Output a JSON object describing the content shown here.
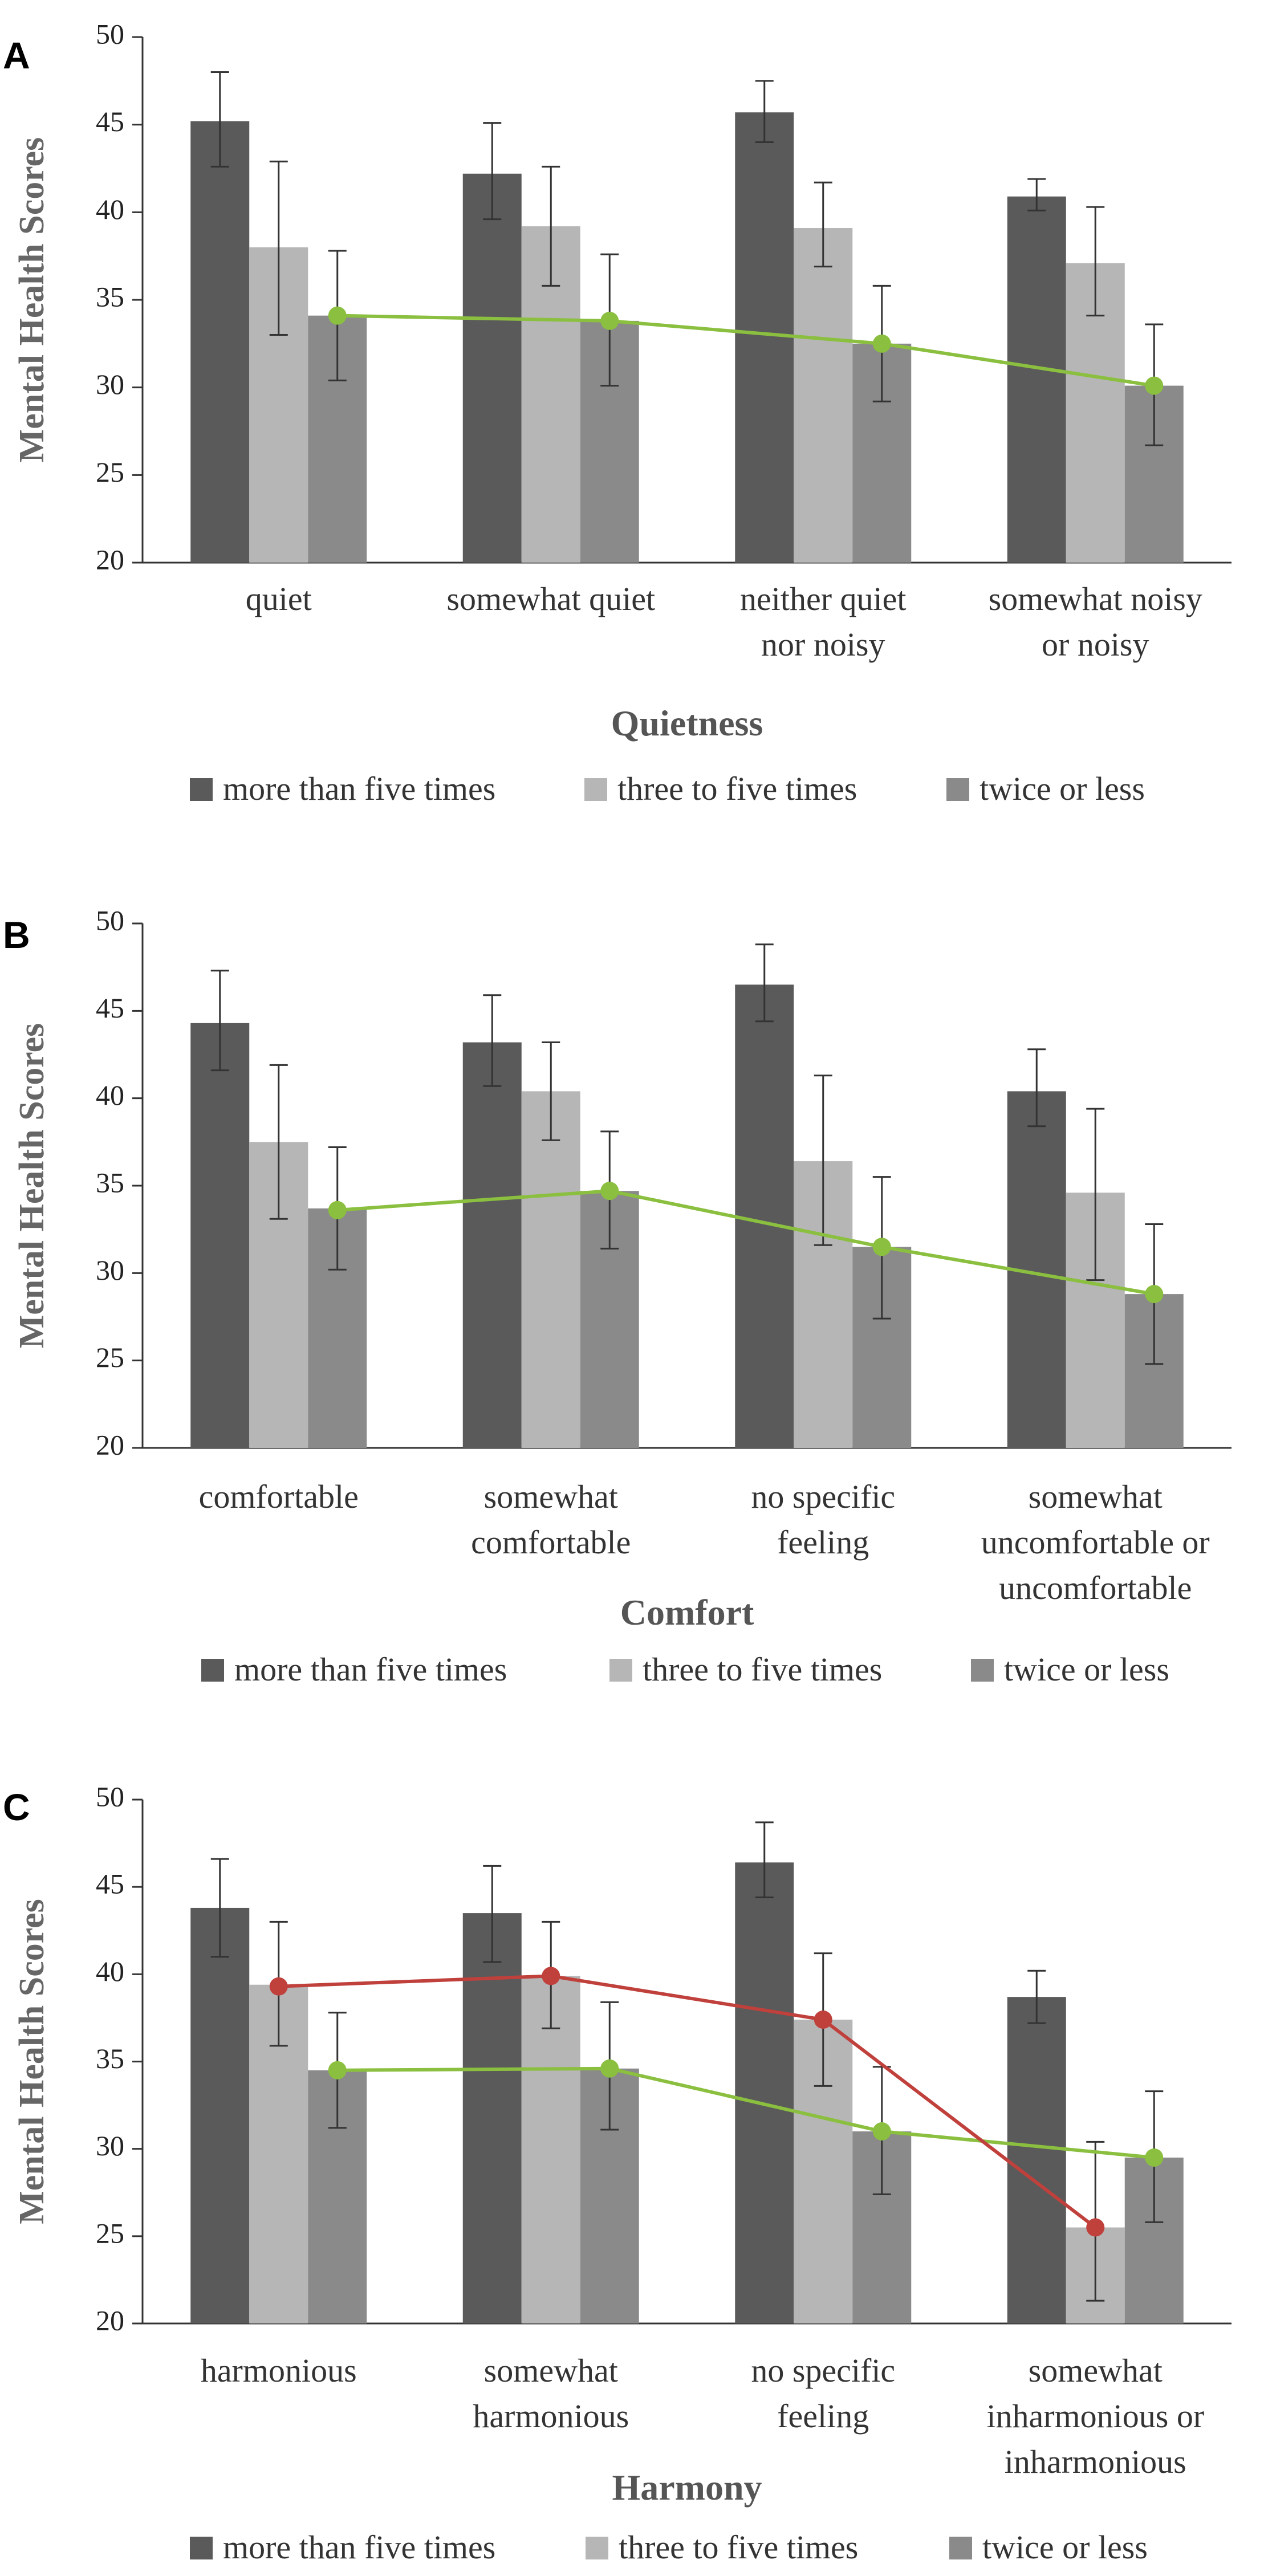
{
  "colors": {
    "more_than_five": "#5a5a5a",
    "three_to_five": "#b6b6b6",
    "twice_or_less": "#8a8a8a",
    "green_line": "#8bbf3f",
    "red_line": "#c0403c",
    "error_bar": "#333333",
    "axis": "#333333"
  },
  "chart_data": [
    {
      "type": "bar",
      "panel": "A",
      "title": "",
      "xlabel": "Quietness",
      "ylabel": "Mental Health Scores",
      "ylim": [
        20,
        50
      ],
      "yticks": [
        20,
        25,
        30,
        35,
        40,
        45,
        50
      ],
      "categories": [
        [
          "quiet"
        ],
        [
          "somewhat quiet"
        ],
        [
          "neither quiet",
          "nor noisy"
        ],
        [
          "somewhat noisy",
          "or noisy"
        ]
      ],
      "series": [
        {
          "name": "more than five times",
          "values": [
            45.2,
            42.2,
            45.7,
            40.9
          ],
          "err_low": [
            42.6,
            39.6,
            44.0,
            40.1
          ],
          "err_high": [
            48.0,
            45.1,
            47.5,
            41.9
          ]
        },
        {
          "name": "three to five times",
          "values": [
            38.0,
            39.2,
            39.1,
            37.1
          ],
          "err_low": [
            33.0,
            35.8,
            36.9,
            34.1
          ],
          "err_high": [
            42.9,
            42.6,
            41.7,
            40.3
          ]
        },
        {
          "name": "twice or less",
          "values": [
            34.1,
            33.8,
            32.5,
            30.1
          ],
          "err_low": [
            30.4,
            30.1,
            29.2,
            26.7
          ],
          "err_high": [
            37.8,
            37.6,
            35.8,
            33.6
          ]
        }
      ],
      "lines": [
        {
          "color_key": "green_line",
          "values": [
            34.1,
            33.8,
            32.5,
            30.1
          ]
        }
      ]
    },
    {
      "type": "bar",
      "panel": "B",
      "title": "",
      "xlabel": "Comfort",
      "ylabel": "Mental Health Scores",
      "ylim": [
        20,
        50
      ],
      "yticks": [
        20,
        25,
        30,
        35,
        40,
        45,
        50
      ],
      "categories": [
        [
          "comfortable"
        ],
        [
          "somewhat",
          "comfortable"
        ],
        [
          "no specific",
          "feeling"
        ],
        [
          "somewhat",
          "uncomfortable or",
          "uncomfortable"
        ]
      ],
      "series": [
        {
          "name": "more than five times",
          "values": [
            44.3,
            43.2,
            46.5,
            40.4
          ],
          "err_low": [
            41.6,
            40.7,
            44.4,
            38.4
          ],
          "err_high": [
            47.3,
            45.9,
            48.8,
            42.8
          ]
        },
        {
          "name": "three to five times",
          "values": [
            37.5,
            40.4,
            36.4,
            34.6
          ],
          "err_low": [
            33.1,
            37.6,
            31.6,
            29.6
          ],
          "err_high": [
            41.9,
            43.2,
            41.3,
            39.4
          ]
        },
        {
          "name": "twice or less",
          "values": [
            33.7,
            34.7,
            31.5,
            28.8
          ],
          "err_low": [
            30.2,
            31.4,
            27.4,
            24.8
          ],
          "err_high": [
            37.2,
            38.1,
            35.5,
            32.8
          ]
        }
      ],
      "lines": [
        {
          "color_key": "green_line",
          "values": [
            33.6,
            34.7,
            31.5,
            28.8
          ]
        }
      ]
    },
    {
      "type": "bar",
      "panel": "C",
      "title": "",
      "xlabel": "Harmony",
      "ylabel": "Mental Health Scores",
      "ylim": [
        20,
        50
      ],
      "yticks": [
        20,
        25,
        30,
        35,
        40,
        45,
        50
      ],
      "categories": [
        [
          "harmonious"
        ],
        [
          "somewhat",
          "harmonious"
        ],
        [
          "no specific",
          "feeling"
        ],
        [
          "somewhat",
          "inharmonious or",
          "inharmonious"
        ]
      ],
      "series": [
        {
          "name": "more than five times",
          "values": [
            43.8,
            43.5,
            46.4,
            38.7
          ],
          "err_low": [
            41.0,
            40.7,
            44.4,
            37.2
          ],
          "err_high": [
            46.6,
            46.2,
            48.7,
            40.2
          ]
        },
        {
          "name": "three to five times",
          "values": [
            39.4,
            39.9,
            37.4,
            25.5
          ],
          "err_low": [
            35.9,
            36.9,
            33.6,
            21.3
          ],
          "err_high": [
            43.0,
            43.0,
            41.2,
            30.4
          ]
        },
        {
          "name": "twice or less",
          "values": [
            34.5,
            34.6,
            31.0,
            29.5
          ],
          "err_low": [
            31.2,
            31.1,
            27.4,
            25.8
          ],
          "err_high": [
            37.8,
            38.4,
            34.7,
            33.3
          ]
        }
      ],
      "lines": [
        {
          "color_key": "green_line",
          "values": [
            34.5,
            34.6,
            31.0,
            29.5
          ]
        },
        {
          "color_key": "red_line",
          "values": [
            39.3,
            39.9,
            37.4,
            25.5
          ]
        }
      ]
    }
  ]
}
